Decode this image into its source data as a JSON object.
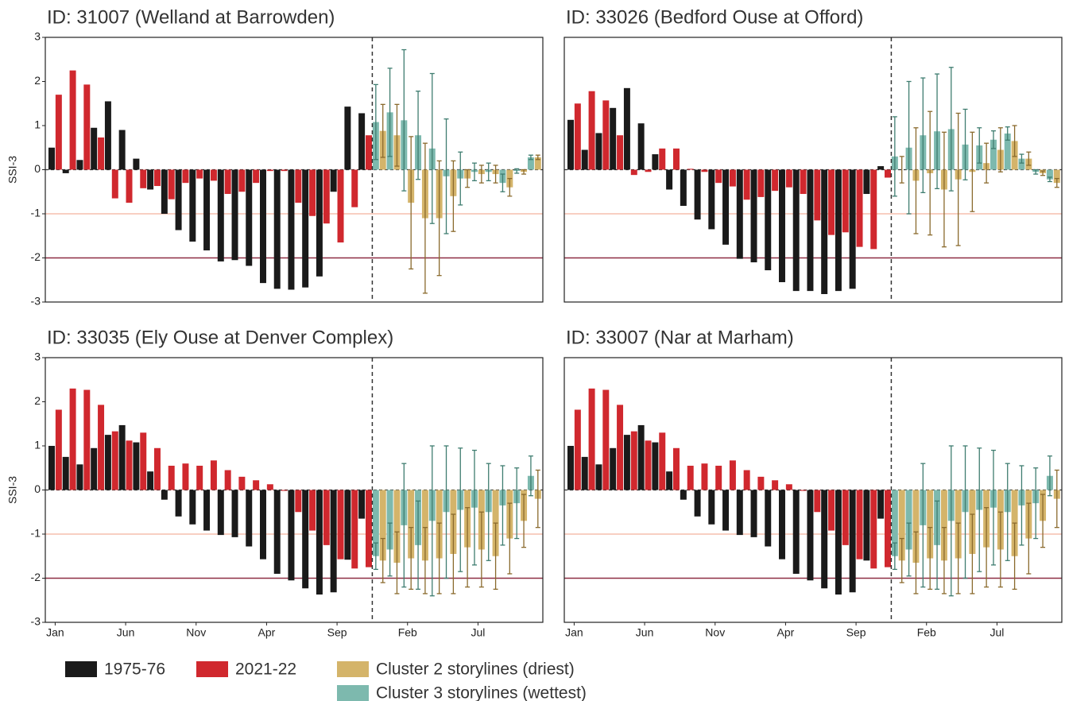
{
  "chart_data": [
    {
      "type": "bar",
      "title": "ID: 31007 (Welland at Barrowden)",
      "ylabel": "SSI-3",
      "xlim": [
        -0.7,
        34.6
      ],
      "ylim": [
        -3,
        3
      ],
      "yticks": [
        -3,
        -2,
        -1,
        0,
        1,
        2,
        3
      ],
      "vline": 22.5,
      "hlines": [
        {
          "value": -1,
          "color": "#f6bfae"
        },
        {
          "value": -2,
          "color": "#8e2e43"
        }
      ],
      "series": [
        {
          "name": "1975-76",
          "color": "#1a1a1a",
          "values": [
            0.5,
            -0.08,
            0.22,
            0.95,
            1.55,
            0.9,
            0.25,
            -0.45,
            -1.0,
            -1.37,
            -1.63,
            -1.83,
            -2.08,
            -2.05,
            -2.18,
            -2.57,
            -2.7,
            -2.72,
            -2.67,
            -2.42,
            -0.5,
            1.43,
            1.28,
            null,
            null,
            null,
            null,
            null,
            null,
            null,
            null,
            null,
            null,
            null,
            null
          ]
        },
        {
          "name": "2021-22",
          "color": "#d0282e",
          "values": [
            1.7,
            2.25,
            1.93,
            0.73,
            -0.65,
            -0.75,
            -0.42,
            -0.37,
            -0.67,
            -0.3,
            -0.2,
            -0.25,
            -0.55,
            -0.5,
            -0.3,
            -0.03,
            -0.03,
            -0.75,
            -1.05,
            -1.22,
            -1.65,
            -0.85,
            0.78,
            null,
            null,
            null,
            null,
            null,
            null,
            null,
            null,
            null,
            null,
            null,
            null
          ]
        },
        {
          "name": "Cluster 2 storylines (driest)",
          "color": "#d4b46a",
          "values": [
            null,
            null,
            null,
            null,
            null,
            null,
            null,
            null,
            null,
            null,
            null,
            null,
            null,
            null,
            null,
            null,
            null,
            null,
            null,
            null,
            null,
            null,
            null,
            0.88,
            0.78,
            -0.75,
            -1.1,
            -1.1,
            -0.6,
            -0.2,
            -0.1,
            -0.1,
            -0.4,
            -0.05,
            0.28
          ],
          "errors": [
            null,
            null,
            null,
            null,
            null,
            null,
            null,
            null,
            null,
            null,
            null,
            null,
            null,
            null,
            null,
            null,
            null,
            null,
            null,
            null,
            null,
            null,
            null,
            0.6,
            0.7,
            1.5,
            1.7,
            1.3,
            0.8,
            0.2,
            0.2,
            0.2,
            0.2,
            0.05,
            0.05
          ]
        },
        {
          "name": "Cluster 3 storylines (wettest)",
          "color": "#7db9ae",
          "values": [
            null,
            null,
            null,
            null,
            null,
            null,
            null,
            null,
            null,
            null,
            null,
            null,
            null,
            null,
            null,
            null,
            null,
            null,
            null,
            null,
            null,
            null,
            null,
            1.08,
            1.3,
            1.12,
            0.78,
            0.48,
            -0.15,
            -0.2,
            -0.05,
            -0.05,
            -0.3,
            -0.03,
            0.28
          ],
          "errors": [
            null,
            null,
            null,
            null,
            null,
            null,
            null,
            null,
            null,
            null,
            null,
            null,
            null,
            null,
            null,
            null,
            null,
            null,
            null,
            null,
            null,
            null,
            null,
            0.85,
            1.0,
            1.6,
            1.0,
            1.7,
            1.3,
            0.6,
            0.2,
            0.2,
            0.2,
            0.05,
            0.05
          ]
        }
      ]
    },
    {
      "type": "bar",
      "title": "ID: 33026 (Bedford Ouse at Offord)",
      "xlim": [
        -0.7,
        34.6
      ],
      "ylim": [
        -3,
        3
      ],
      "vline": 22.5,
      "hlines": [
        {
          "value": -1,
          "color": "#f6bfae"
        },
        {
          "value": -2,
          "color": "#8e2e43"
        }
      ],
      "series": [
        {
          "color": "#1a1a1a",
          "values": [
            1.13,
            0.45,
            0.83,
            1.4,
            1.85,
            1.05,
            0.35,
            -0.45,
            -0.82,
            -1.13,
            -1.35,
            -1.7,
            -2.02,
            -2.1,
            -2.28,
            -2.55,
            -2.75,
            -2.75,
            -2.82,
            -2.75,
            -2.7,
            -0.55,
            0.08,
            null,
            null,
            null,
            null,
            null,
            null,
            null,
            null,
            null,
            null,
            null,
            null
          ]
        },
        {
          "color": "#d0282e",
          "values": [
            1.5,
            1.78,
            1.57,
            0.78,
            -0.12,
            -0.05,
            0.48,
            0.48,
            0.02,
            -0.05,
            -0.3,
            -0.38,
            -0.68,
            -0.62,
            -0.48,
            -0.4,
            -0.55,
            -1.15,
            -1.48,
            -1.42,
            -1.75,
            -1.8,
            -0.18,
            null,
            null,
            null,
            null,
            null,
            null,
            null,
            null,
            null,
            null,
            null,
            null
          ]
        },
        {
          "color": "#d4b46a",
          "values": [
            null,
            null,
            null,
            null,
            null,
            null,
            null,
            null,
            null,
            null,
            null,
            null,
            null,
            null,
            null,
            null,
            null,
            null,
            null,
            null,
            null,
            null,
            null,
            0.0,
            -0.25,
            -0.08,
            -0.45,
            -0.22,
            -0.05,
            0.15,
            0.45,
            0.65,
            0.25,
            -0.08,
            -0.3
          ],
          "errors": [
            null,
            null,
            null,
            null,
            null,
            null,
            null,
            null,
            null,
            null,
            null,
            null,
            null,
            null,
            null,
            null,
            null,
            null,
            null,
            null,
            null,
            null,
            null,
            0.3,
            1.2,
            1.4,
            1.3,
            1.5,
            0.9,
            0.45,
            0.5,
            0.35,
            0.15,
            0.05,
            0.1
          ]
        },
        {
          "color": "#7db9ae",
          "values": [
            null,
            null,
            null,
            null,
            null,
            null,
            null,
            null,
            null,
            null,
            null,
            null,
            null,
            null,
            null,
            null,
            null,
            null,
            null,
            null,
            null,
            null,
            null,
            0.3,
            0.5,
            0.78,
            0.87,
            0.92,
            0.57,
            0.55,
            0.68,
            0.82,
            0.25,
            -0.05,
            -0.22
          ],
          "errors": [
            null,
            null,
            null,
            null,
            null,
            null,
            null,
            null,
            null,
            null,
            null,
            null,
            null,
            null,
            null,
            null,
            null,
            null,
            null,
            null,
            null,
            null,
            null,
            0.9,
            1.5,
            1.3,
            1.3,
            1.4,
            0.8,
            0.4,
            0.2,
            0.15,
            0.1,
            0.05,
            0.05
          ]
        }
      ]
    },
    {
      "type": "bar",
      "title": "ID: 33035 (Ely Ouse at Denver Complex)",
      "ylabel": "SSI-3",
      "categories": [
        "Jan",
        null,
        null,
        null,
        null,
        "Jun",
        null,
        null,
        null,
        null,
        "Nov",
        null,
        null,
        null,
        null,
        "Apr",
        null,
        null,
        null,
        null,
        "Sep",
        null,
        null,
        null,
        null,
        "Feb",
        null,
        null,
        null,
        null,
        "Jul",
        null,
        null,
        null,
        null
      ],
      "xlim": [
        -0.7,
        34.6
      ],
      "ylim": [
        -3,
        3
      ],
      "yticks": [
        -3,
        -2,
        -1,
        0,
        1,
        2,
        3
      ],
      "vline": 22.5,
      "hlines": [
        {
          "value": -1,
          "color": "#f6bfae"
        },
        {
          "value": -2,
          "color": "#8e2e43"
        }
      ],
      "series": [
        {
          "color": "#1a1a1a",
          "values": [
            1.0,
            0.75,
            0.58,
            0.95,
            1.25,
            1.47,
            1.08,
            0.42,
            -0.22,
            -0.6,
            -0.78,
            -0.92,
            -1.02,
            -1.07,
            -1.28,
            -1.57,
            -1.9,
            -2.05,
            -2.23,
            -2.37,
            -2.32,
            -1.58,
            -0.65,
            null,
            null,
            null,
            null,
            null,
            null,
            null,
            null,
            null,
            null,
            null,
            null
          ]
        },
        {
          "color": "#d0282e",
          "values": [
            1.82,
            2.3,
            2.27,
            1.93,
            1.33,
            1.12,
            1.3,
            0.95,
            0.55,
            0.6,
            0.55,
            0.67,
            0.45,
            0.3,
            0.22,
            0.13,
            -0.02,
            -0.5,
            -0.92,
            -1.25,
            -1.57,
            -1.78,
            -1.75,
            null,
            null,
            null,
            null,
            null,
            null,
            null,
            null,
            null,
            null,
            null,
            null
          ]
        },
        {
          "color": "#d4b46a",
          "values": [
            null,
            null,
            null,
            null,
            null,
            null,
            null,
            null,
            null,
            null,
            null,
            null,
            null,
            null,
            null,
            null,
            null,
            null,
            null,
            null,
            null,
            null,
            null,
            -1.6,
            -1.65,
            -1.55,
            -1.6,
            -1.55,
            -1.45,
            -1.3,
            -1.35,
            -1.5,
            -1.1,
            -0.7,
            -0.2
          ],
          "errors": [
            null,
            null,
            null,
            null,
            null,
            null,
            null,
            null,
            null,
            null,
            null,
            null,
            null,
            null,
            null,
            null,
            null,
            null,
            null,
            null,
            null,
            null,
            null,
            0.5,
            0.7,
            0.7,
            0.75,
            0.8,
            0.9,
            0.9,
            0.85,
            0.75,
            0.8,
            0.6,
            0.65
          ]
        },
        {
          "color": "#7db9ae",
          "values": [
            null,
            null,
            null,
            null,
            null,
            null,
            null,
            null,
            null,
            null,
            null,
            null,
            null,
            null,
            null,
            null,
            null,
            null,
            null,
            null,
            null,
            null,
            null,
            -1.5,
            -1.35,
            -0.8,
            -1.25,
            -0.7,
            -0.5,
            -0.45,
            -0.4,
            -0.5,
            -0.35,
            -0.3,
            0.32
          ],
          "errors": [
            null,
            null,
            null,
            null,
            null,
            null,
            null,
            null,
            null,
            null,
            null,
            null,
            null,
            null,
            null,
            null,
            null,
            null,
            null,
            null,
            null,
            null,
            null,
            0.3,
            0.6,
            1.4,
            1.0,
            1.7,
            1.5,
            1.4,
            1.3,
            1.1,
            0.9,
            0.8,
            0.45
          ]
        }
      ]
    },
    {
      "type": "bar",
      "title": "ID: 33007 (Nar at Marham)",
      "categories": [
        "Jan",
        null,
        null,
        null,
        null,
        "Jun",
        null,
        null,
        null,
        null,
        "Nov",
        null,
        null,
        null,
        null,
        "Apr",
        null,
        null,
        null,
        null,
        "Sep",
        null,
        null,
        null,
        null,
        "Feb",
        null,
        null,
        null,
        null,
        "Jul",
        null,
        null,
        null,
        null
      ],
      "xlim": [
        -0.7,
        34.6
      ],
      "ylim": [
        -3,
        3
      ],
      "vline": 22.5,
      "hlines": [
        {
          "value": -1,
          "color": "#f6bfae"
        },
        {
          "value": -2,
          "color": "#8e2e43"
        }
      ],
      "series": [
        {
          "color": "#1a1a1a",
          "values": [
            1.0,
            0.75,
            0.58,
            0.95,
            1.25,
            1.47,
            1.08,
            0.42,
            -0.22,
            -0.6,
            -0.78,
            -0.92,
            -1.02,
            -1.07,
            -1.28,
            -1.57,
            -1.9,
            -2.05,
            -2.23,
            -2.37,
            -2.32,
            -1.6,
            -0.65,
            null,
            null,
            null,
            null,
            null,
            null,
            null,
            null,
            null,
            null,
            null,
            null
          ]
        },
        {
          "color": "#d0282e",
          "values": [
            1.82,
            2.3,
            2.27,
            1.93,
            1.33,
            1.12,
            1.3,
            0.95,
            0.55,
            0.6,
            0.55,
            0.67,
            0.45,
            0.3,
            0.22,
            0.13,
            -0.02,
            -0.5,
            -0.92,
            -1.25,
            -1.57,
            -1.78,
            -1.75,
            null,
            null,
            null,
            null,
            null,
            null,
            null,
            null,
            null,
            null,
            null,
            null
          ]
        },
        {
          "color": "#d4b46a",
          "values": [
            null,
            null,
            null,
            null,
            null,
            null,
            null,
            null,
            null,
            null,
            null,
            null,
            null,
            null,
            null,
            null,
            null,
            null,
            null,
            null,
            null,
            null,
            null,
            -1.6,
            -1.65,
            -1.55,
            -1.6,
            -1.55,
            -1.45,
            -1.3,
            -1.35,
            -1.5,
            -1.1,
            -0.7,
            -0.2
          ],
          "errors": [
            null,
            null,
            null,
            null,
            null,
            null,
            null,
            null,
            null,
            null,
            null,
            null,
            null,
            null,
            null,
            null,
            null,
            null,
            null,
            null,
            null,
            null,
            null,
            0.5,
            0.7,
            0.7,
            0.75,
            0.8,
            0.9,
            0.9,
            0.85,
            0.75,
            0.8,
            0.6,
            0.65
          ]
        },
        {
          "color": "#7db9ae",
          "values": [
            null,
            null,
            null,
            null,
            null,
            null,
            null,
            null,
            null,
            null,
            null,
            null,
            null,
            null,
            null,
            null,
            null,
            null,
            null,
            null,
            null,
            null,
            null,
            -1.5,
            -1.35,
            -0.8,
            -1.25,
            -0.7,
            -0.5,
            -0.45,
            -0.4,
            -0.5,
            -0.35,
            -0.3,
            0.32
          ],
          "errors": [
            null,
            null,
            null,
            null,
            null,
            null,
            null,
            null,
            null,
            null,
            null,
            null,
            null,
            null,
            null,
            null,
            null,
            null,
            null,
            null,
            null,
            null,
            null,
            0.3,
            0.6,
            1.4,
            1.0,
            1.7,
            1.5,
            1.4,
            1.3,
            1.1,
            0.9,
            0.8,
            0.45
          ]
        }
      ]
    }
  ]
}
